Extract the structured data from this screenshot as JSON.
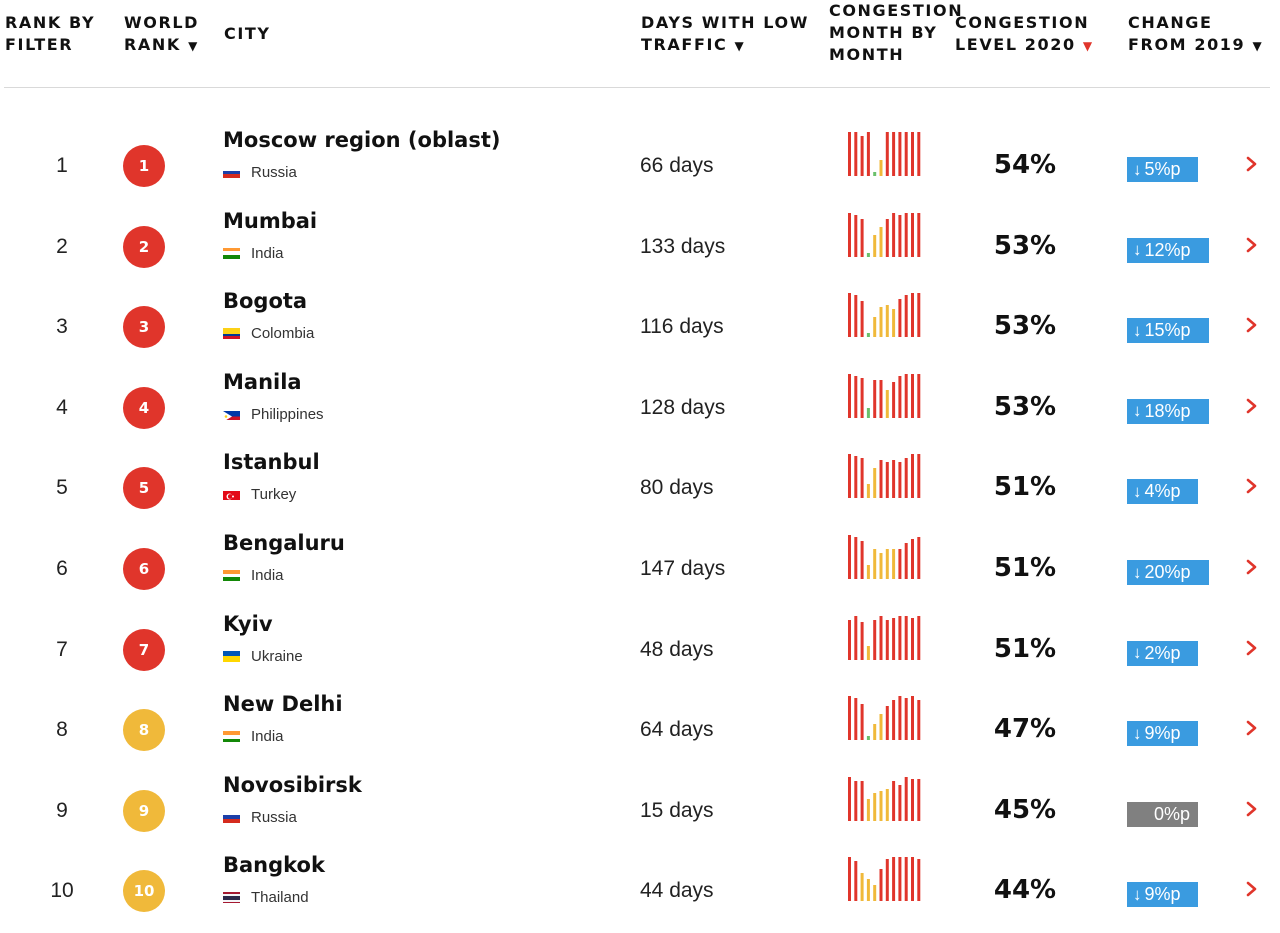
{
  "header": {
    "rank_by_filter": "RANK BY\nFILTER",
    "world_rank": "WORLD\nRANK",
    "city": "CITY",
    "days_low_traffic": "DAYS WITH LOW\nTRAFFIC",
    "congestion_month": "CONGESTION\nMONTH BY\nMONTH",
    "congestion_level": "CONGESTION\nLEVEL 2020",
    "change": "CHANGE\nFROM 2019",
    "sort_arrow": "▼"
  },
  "colors": {
    "red": "#e0352b",
    "yellow": "#f0b93a",
    "green": "#6ac06b",
    "blue": "#3a9be0",
    "gray": "#808080"
  },
  "rows": [
    {
      "rank": "1",
      "world_rank": "1",
      "badge": "red",
      "city": "Moscow region (oblast)",
      "country": "Russia",
      "flag": "russia",
      "days": "66 days",
      "pct": "54%",
      "change": "5%p",
      "change_dir": "down",
      "bars": [
        "r44",
        "r44",
        "r40",
        "r44",
        "g4",
        "y16",
        "r44",
        "r44",
        "r44",
        "r44",
        "r44",
        "r44"
      ]
    },
    {
      "rank": "2",
      "world_rank": "2",
      "badge": "red",
      "city": "Mumbai",
      "country": "India",
      "flag": "india",
      "days": "133 days",
      "pct": "53%",
      "change": "12%p",
      "change_dir": "down",
      "bars": [
        "r44",
        "r42",
        "r38",
        "g4",
        "y22",
        "y30",
        "r38",
        "r44",
        "r42",
        "r44",
        "r44",
        "r44"
      ]
    },
    {
      "rank": "3",
      "world_rank": "3",
      "badge": "red",
      "city": "Bogota",
      "country": "Colombia",
      "flag": "colombia",
      "days": "116 days",
      "pct": "53%",
      "change": "15%p",
      "change_dir": "down",
      "bars": [
        "r44",
        "r42",
        "r36",
        "g4",
        "y20",
        "y30",
        "y32",
        "y28",
        "r38",
        "r42",
        "r44",
        "r44"
      ]
    },
    {
      "rank": "4",
      "world_rank": "4",
      "badge": "red",
      "city": "Manila",
      "country": "Philippines",
      "flag": "philippines",
      "days": "128 days",
      "pct": "53%",
      "change": "18%p",
      "change_dir": "down",
      "bars": [
        "r44",
        "r42",
        "r40",
        "g10",
        "r38",
        "r38",
        "y28",
        "r36",
        "r42",
        "r44",
        "r44",
        "r44"
      ]
    },
    {
      "rank": "5",
      "world_rank": "5",
      "badge": "red",
      "city": "Istanbul",
      "country": "Turkey",
      "flag": "turkey",
      "days": "80 days",
      "pct": "51%",
      "change": "4%p",
      "change_dir": "down",
      "bars": [
        "r44",
        "r42",
        "r40",
        "y14",
        "y30",
        "r38",
        "r36",
        "r38",
        "r36",
        "r40",
        "r44",
        "r44"
      ]
    },
    {
      "rank": "6",
      "world_rank": "6",
      "badge": "red",
      "city": "Bengaluru",
      "country": "India",
      "flag": "india",
      "days": "147 days",
      "pct": "51%",
      "change": "20%p",
      "change_dir": "down",
      "bars": [
        "r44",
        "r42",
        "r38",
        "y14",
        "y30",
        "y26",
        "y30",
        "y30",
        "r30",
        "r36",
        "r40",
        "r42"
      ]
    },
    {
      "rank": "7",
      "world_rank": "7",
      "badge": "red",
      "city": "Kyiv",
      "country": "Ukraine",
      "flag": "ukraine",
      "days": "48 days",
      "pct": "51%",
      "change": "2%p",
      "change_dir": "down",
      "bars": [
        "r40",
        "r44",
        "r38",
        "y14",
        "r40",
        "r44",
        "r40",
        "r42",
        "r44",
        "r44",
        "r42",
        "r44"
      ]
    },
    {
      "rank": "8",
      "world_rank": "8",
      "badge": "yellow",
      "city": "New Delhi",
      "country": "India",
      "flag": "india",
      "days": "64 days",
      "pct": "47%",
      "change": "9%p",
      "change_dir": "down",
      "bars": [
        "r44",
        "r42",
        "r36",
        "g4",
        "y16",
        "y26",
        "r34",
        "r40",
        "r44",
        "r42",
        "r44",
        "r40"
      ]
    },
    {
      "rank": "9",
      "world_rank": "9",
      "badge": "yellow",
      "city": "Novosibirsk",
      "country": "Russia",
      "flag": "russia",
      "days": "15 days",
      "pct": "45%",
      "change": "0%p",
      "change_dir": "none",
      "bars": [
        "r44",
        "r40",
        "r40",
        "y22",
        "y28",
        "y30",
        "y32",
        "r40",
        "r36",
        "r44",
        "r42",
        "r42"
      ]
    },
    {
      "rank": "10",
      "world_rank": "10",
      "badge": "yellow",
      "city": "Bangkok",
      "country": "Thailand",
      "flag": "thailand",
      "days": "44 days",
      "pct": "44%",
      "change": "9%p",
      "change_dir": "down",
      "bars": [
        "r44",
        "r40",
        "y28",
        "y22",
        "y16",
        "r32",
        "r42",
        "r44",
        "r44",
        "r44",
        "r44",
        "r42"
      ]
    }
  ]
}
